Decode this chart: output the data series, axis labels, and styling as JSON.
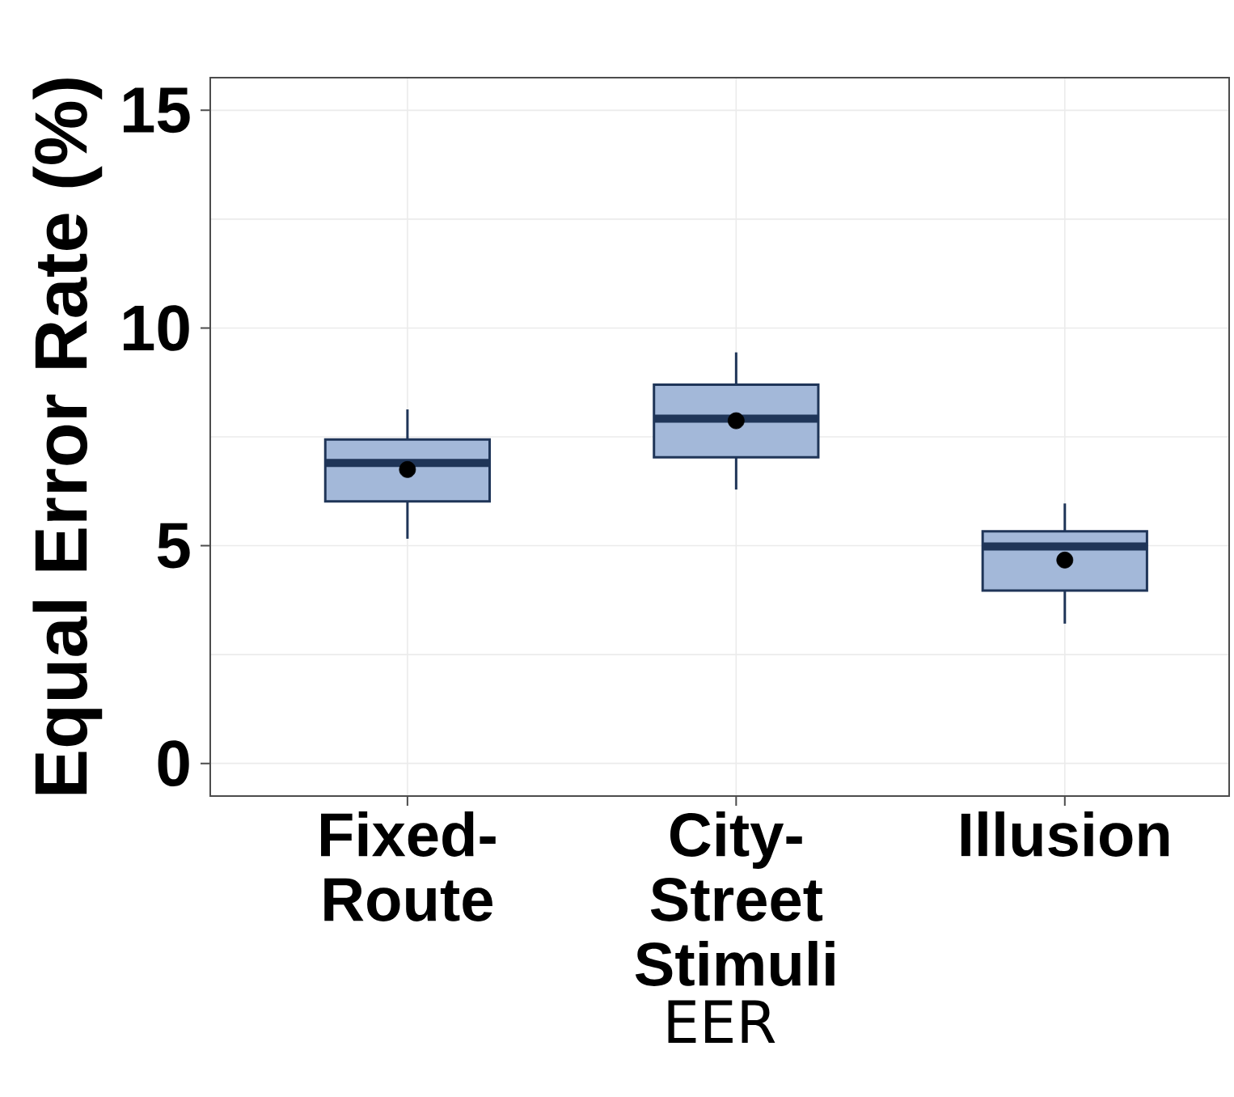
{
  "chart_data": {
    "type": "box",
    "xlabel": "EER",
    "ylabel": "Equal Error Rate (%)",
    "categories": [
      "Fixed-Route",
      "City-Street Stimuli",
      "Illusion"
    ],
    "color": "#a3b8d9",
    "boxes": [
      {
        "low": 5.16,
        "q1": 6.02,
        "median": 6.9,
        "q3": 7.44,
        "high": 8.13,
        "mean": 6.75
      },
      {
        "low": 6.29,
        "q1": 7.03,
        "median": 7.92,
        "q3": 8.7,
        "high": 9.44,
        "mean": 7.87
      },
      {
        "low": 3.21,
        "q1": 3.97,
        "median": 4.98,
        "q3": 5.33,
        "high": 5.97,
        "mean": 4.67
      }
    ],
    "ylim": [
      -0.75,
      15.75
    ],
    "yticks": [
      0,
      5,
      10,
      15
    ],
    "grid": true
  }
}
